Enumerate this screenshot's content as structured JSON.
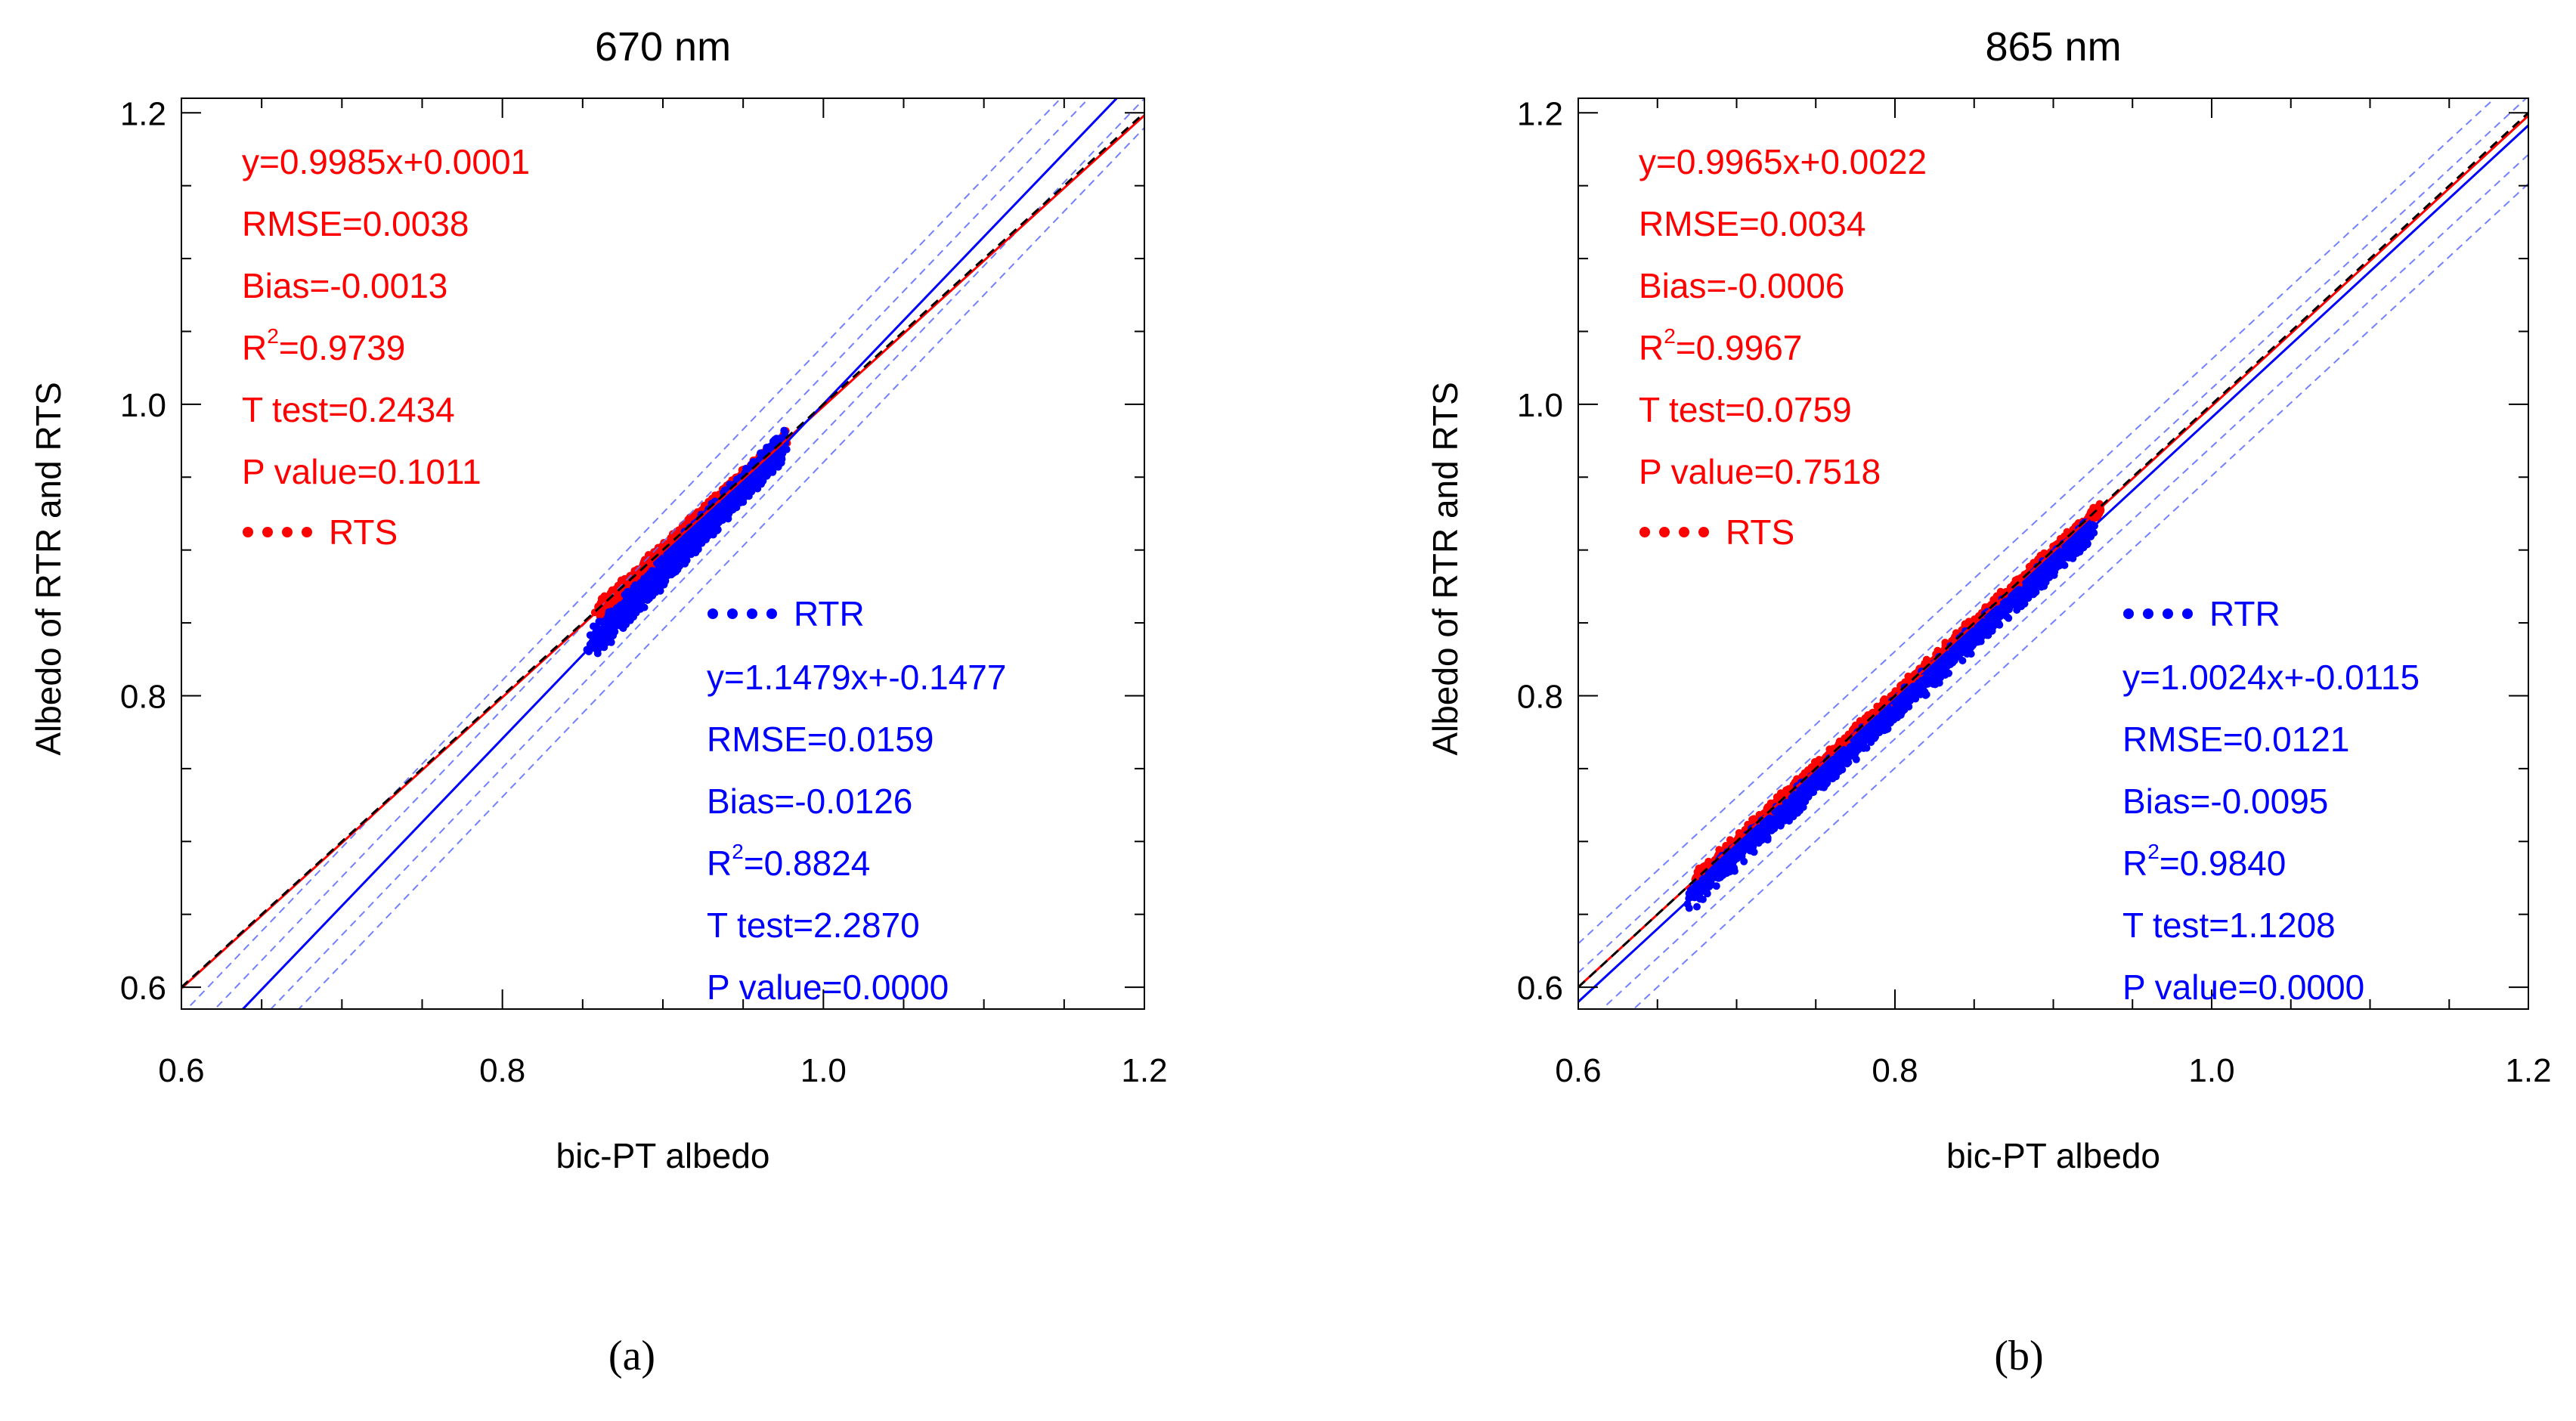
{
  "colors": {
    "rts": "#ff0000",
    "rtr": "#0000ff",
    "axis": "#000000",
    "ref_line": "#000000"
  },
  "chart_data": [
    {
      "type": "scatter",
      "panel_label": "(a)",
      "title": "670 nm",
      "xlabel": "bic-PT albedo",
      "ylabel": "Albedo of RTR and RTS",
      "xlim": [
        0.6,
        1.2
      ],
      "ylim": [
        0.585,
        1.21
      ],
      "x_ticks": [
        "0.6",
        "0.8",
        "1.0",
        "1.2"
      ],
      "x_tick_values": [
        0.6,
        0.8,
        1.0,
        1.2
      ],
      "y_ticks": [
        "0.6",
        "0.8",
        "1.0",
        "1.2"
      ],
      "y_tick_values": [
        0.6,
        0.8,
        1.0,
        1.2
      ],
      "reference_line": {
        "slope": 1,
        "intercept": 0,
        "style": "dashed"
      },
      "series": [
        {
          "name": "RTS",
          "legend": "RTS",
          "fit": {
            "slope": 0.9985,
            "intercept": 0.0001
          },
          "x_range": [
            0.86,
            0.975
          ],
          "spread": 0.007,
          "stats": [
            "y=0.9985x+0.0001",
            "RMSE=0.0038",
            "Bias=-0.0013",
            "R",
            "2",
            "=0.9739",
            "T test=0.2434",
            "P value=0.1011"
          ]
        },
        {
          "name": "RTR",
          "legend": "RTR",
          "fit": {
            "slope": 1.1479,
            "intercept": -0.1477
          },
          "x_range": [
            0.855,
            0.975
          ],
          "spread": 0.012,
          "bounds_offset": [
            0.02,
            0.04
          ],
          "stats": [
            "y=1.1479x+-0.1477",
            "RMSE=0.0159",
            "Bias=-0.0126",
            "R",
            "2",
            "=0.8824",
            "T test=2.2870",
            "P value=0.0000"
          ]
        }
      ]
    },
    {
      "type": "scatter",
      "panel_label": "(b)",
      "title": "865 nm",
      "xlabel": "bic-PT albedo",
      "ylabel": "Albedo of RTR and RTS",
      "xlim": [
        0.6,
        1.2
      ],
      "ylim": [
        0.585,
        1.21
      ],
      "x_ticks": [
        "0.6",
        "0.8",
        "1.0",
        "1.2"
      ],
      "x_tick_values": [
        0.6,
        0.8,
        1.0,
        1.2
      ],
      "y_ticks": [
        "0.6",
        "0.8",
        "1.0",
        "1.2"
      ],
      "y_tick_values": [
        0.6,
        0.8,
        1.0,
        1.2
      ],
      "reference_line": {
        "slope": 1,
        "intercept": 0,
        "style": "dashed"
      },
      "series": [
        {
          "name": "RTS",
          "legend": "RTS",
          "fit": {
            "slope": 0.9965,
            "intercept": 0.0022
          },
          "x_range": [
            0.675,
            0.93
          ],
          "spread": 0.006,
          "stats": [
            "y=0.9965x+0.0022",
            "RMSE=0.0034",
            "Bias=-0.0006",
            "R",
            "2",
            "=0.9967",
            "T test=0.0759",
            "P value=0.7518"
          ]
        },
        {
          "name": "RTR",
          "legend": "RTR",
          "fit": {
            "slope": 1.0024,
            "intercept": -0.0115
          },
          "x_range": [
            0.67,
            0.925
          ],
          "spread": 0.01,
          "bounds_offset": [
            0.02,
            0.04
          ],
          "stats": [
            "y=1.0024x+-0.0115",
            "RMSE=0.0121",
            "Bias=-0.0095",
            "R",
            "2",
            "=0.9840",
            "T test=1.1208",
            "P value=0.0000"
          ]
        }
      ]
    }
  ]
}
